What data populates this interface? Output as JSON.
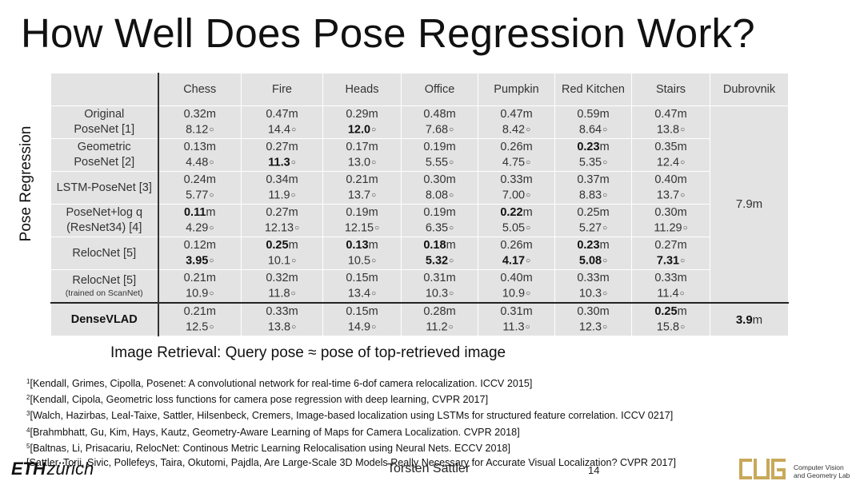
{
  "title": "How Well Does Pose Regression Work?",
  "side_label": "Pose Regression",
  "columns": [
    "Chess",
    "Fire",
    "Heads",
    "Office",
    "Pumpkin",
    "Red Kitchen",
    "Stairs",
    "Dubrovnik"
  ],
  "rows": [
    {
      "method_lines": [
        "Original",
        "PoseNet [1]"
      ],
      "cells": [
        {
          "m": "0.32",
          "m_unit": "m",
          "deg": "8.12",
          "deg_unit": "○"
        },
        {
          "m": "0.47",
          "m_unit": "m",
          "deg": "14.4",
          "deg_unit": "○"
        },
        {
          "m": "0.29",
          "m_unit": "m",
          "deg": "12.0",
          "deg_unit": "○"
        },
        {
          "m": "0.48",
          "m_unit": "m",
          "deg": "7.68",
          "deg_unit": "○"
        },
        {
          "m": "0.47",
          "m_unit": "m",
          "deg": "8.42",
          "deg_unit": "○"
        },
        {
          "m": "0.59",
          "m_unit": "m",
          "deg": "8.64",
          "deg_unit": "○"
        },
        {
          "m": "0.47",
          "m_unit": "m",
          "deg": "13.8",
          "deg_unit": "○"
        }
      ]
    },
    {
      "method_lines": [
        "Geometric",
        "PoseNet [2]"
      ],
      "cells": [
        {
          "m": "0.13",
          "m_unit": "m",
          "deg": "4.48",
          "deg_unit": "○"
        },
        {
          "m": "0.27",
          "m_unit": "m",
          "deg": "11.3",
          "deg_unit": "○"
        },
        {
          "m": "0.17",
          "m_unit": "m",
          "deg": "13.0",
          "deg_unit": "○"
        },
        {
          "m": "0.19",
          "m_unit": "m",
          "deg": "5.55",
          "deg_unit": "○"
        },
        {
          "m": "0.26",
          "m_unit": "m",
          "deg": "4.75",
          "deg_unit": "○"
        },
        {
          "m": "0.23",
          "m_unit": "m",
          "deg": "5.35",
          "deg_unit": "○"
        },
        {
          "m": "0.35",
          "m_unit": "m",
          "deg": "12.4",
          "deg_unit": "○"
        }
      ]
    },
    {
      "method_lines": [
        "LSTM-PoseNet [3]"
      ],
      "cells": [
        {
          "m": "0.24",
          "m_unit": "m",
          "deg": "5.77",
          "deg_unit": "○"
        },
        {
          "m": "0.34",
          "m_unit": "m",
          "deg": "11.9",
          "deg_unit": "○"
        },
        {
          "m": "0.21",
          "m_unit": "m",
          "deg": "13.7",
          "deg_unit": "○"
        },
        {
          "m": "0.30",
          "m_unit": "m",
          "deg": "8.08",
          "deg_unit": "○"
        },
        {
          "m": "0.33",
          "m_unit": "m",
          "deg": "7.00",
          "deg_unit": "○"
        },
        {
          "m": "0.37",
          "m_unit": "m",
          "deg": "8.83",
          "deg_unit": "○"
        },
        {
          "m": "0.40",
          "m_unit": "m",
          "deg": "13.7",
          "deg_unit": "○"
        }
      ]
    },
    {
      "method_lines": [
        "PoseNet+log q",
        "(ResNet34) [4]"
      ],
      "cells": [
        {
          "m": "0.11",
          "m_unit": "m",
          "deg": "4.29",
          "deg_unit": "○"
        },
        {
          "m": "0.27",
          "m_unit": "m",
          "deg": "12.13",
          "deg_unit": "○"
        },
        {
          "m": "0.19",
          "m_unit": "m",
          "deg": "12.15",
          "deg_unit": "○"
        },
        {
          "m": "0.19",
          "m_unit": "m",
          "deg": "6.35",
          "deg_unit": "○"
        },
        {
          "m": "0.22",
          "m_unit": "m",
          "deg": "5.05",
          "deg_unit": "○"
        },
        {
          "m": "0.25",
          "m_unit": "m",
          "deg": "5.27",
          "deg_unit": "○"
        },
        {
          "m": "0.30",
          "m_unit": "m",
          "deg": "11.29",
          "deg_unit": "○"
        }
      ]
    },
    {
      "method_lines": [
        "RelocNet [5]"
      ],
      "cells": [
        {
          "m": "0.12",
          "m_unit": "m",
          "deg": "3.95",
          "deg_unit": "○"
        },
        {
          "m": "0.25",
          "m_unit": "m",
          "deg": "10.1",
          "deg_unit": "○"
        },
        {
          "m": "0.13",
          "m_unit": "m",
          "deg": "10.5",
          "deg_unit": "○"
        },
        {
          "m": "0.18",
          "m_unit": "m",
          "deg": "5.32",
          "deg_unit": "○"
        },
        {
          "m": "0.26",
          "m_unit": "m",
          "deg": "4.17",
          "deg_unit": "○"
        },
        {
          "m": "0.23",
          "m_unit": "m",
          "deg": "5.08",
          "deg_unit": "○"
        },
        {
          "m": "0.27",
          "m_unit": "m",
          "deg": "7.31",
          "deg_unit": "○"
        }
      ]
    },
    {
      "method_lines": [
        "RelocNet [5]"
      ],
      "method_small": "(trained on ScanNet)",
      "cells": [
        {
          "m": "0.21",
          "m_unit": "m",
          "deg": "10.9",
          "deg_unit": "○"
        },
        {
          "m": "0.32",
          "m_unit": "m",
          "deg": "11.8",
          "deg_unit": "○"
        },
        {
          "m": "0.15",
          "m_unit": "m",
          "deg": "13.4",
          "deg_unit": "○"
        },
        {
          "m": "0.31",
          "m_unit": "m",
          "deg": "10.3",
          "deg_unit": "○"
        },
        {
          "m": "0.40",
          "m_unit": "m",
          "deg": "10.9",
          "deg_unit": "○"
        },
        {
          "m": "0.33",
          "m_unit": "m",
          "deg": "10.3",
          "deg_unit": "○"
        },
        {
          "m": "0.33",
          "m_unit": "m",
          "deg": "11.4",
          "deg_unit": "○"
        }
      ]
    },
    {
      "method_lines": [
        "DenseVLAD"
      ],
      "cells": [
        {
          "m": "0.21",
          "m_unit": "m",
          "deg": "12.5",
          "deg_unit": "○"
        },
        {
          "m": "0.33",
          "m_unit": "m",
          "deg": "13.8",
          "deg_unit": "○"
        },
        {
          "m": "0.15",
          "m_unit": "m",
          "deg": "14.9",
          "deg_unit": "○"
        },
        {
          "m": "0.28",
          "m_unit": "m",
          "deg": "11.2",
          "deg_unit": "○"
        },
        {
          "m": "0.31",
          "m_unit": "m",
          "deg": "11.3",
          "deg_unit": "○"
        },
        {
          "m": "0.30",
          "m_unit": "m",
          "deg": "12.3",
          "deg_unit": "○"
        },
        {
          "m": "0.25",
          "m_unit": "m",
          "deg": "15.8",
          "deg_unit": "○"
        }
      ]
    }
  ],
  "dubrovnik": {
    "posenet": {
      "value": "7.9",
      "unit": "m"
    },
    "densevlad": {
      "value": "3.9",
      "unit": "m"
    }
  },
  "retrieval_note": "Image Retrieval: Query pose ≈ pose of top-retrieved image",
  "references": [
    {
      "num": "1",
      "text": "[Kendall, Grimes, Cipolla, Posenet: A convolutional network for real-time 6-dof camera relocalization. ICCV 2015]"
    },
    {
      "num": "2",
      "text": "[Kendall, Cipola, Geometric loss functions for camera pose regression with deep learning, CVPR 2017]"
    },
    {
      "num": "3",
      "text": "[Walch, Hazirbas, Leal-Taixe, Sattler, Hilsenbeck, Cremers, Image-based localization using LSTMs for structured feature correlation. ICCV 0217]"
    },
    {
      "num": "4",
      "text": "[Brahmbhatt, Gu, Kim, Hays, Kautz, Geometry-Aware Learning of Maps for Camera Localization. CVPR 2018]"
    },
    {
      "num": "5",
      "text": "[Baltnas, Li, Prisacariu, RelocNet: Continous Metric Learning Relocalisation using Neural Nets. ECCV 2018]"
    },
    {
      "num": "",
      "text": "[Sattler, Torii, Sivic, Pollefeys, Taira, Okutomi, Pajdla, Are Large-Scale 3D Models Really Necessary for Accurate Visual Localization? CVPR 2017]"
    }
  ],
  "footer": {
    "logo_eth": "ETH",
    "logo_zurich": "zürich",
    "presenter": "Torsten Sattler",
    "slide_number": "14",
    "lab_line1": "Computer Vision",
    "lab_line2": "and Geometry Lab",
    "brand_color": "#c8a85a"
  }
}
